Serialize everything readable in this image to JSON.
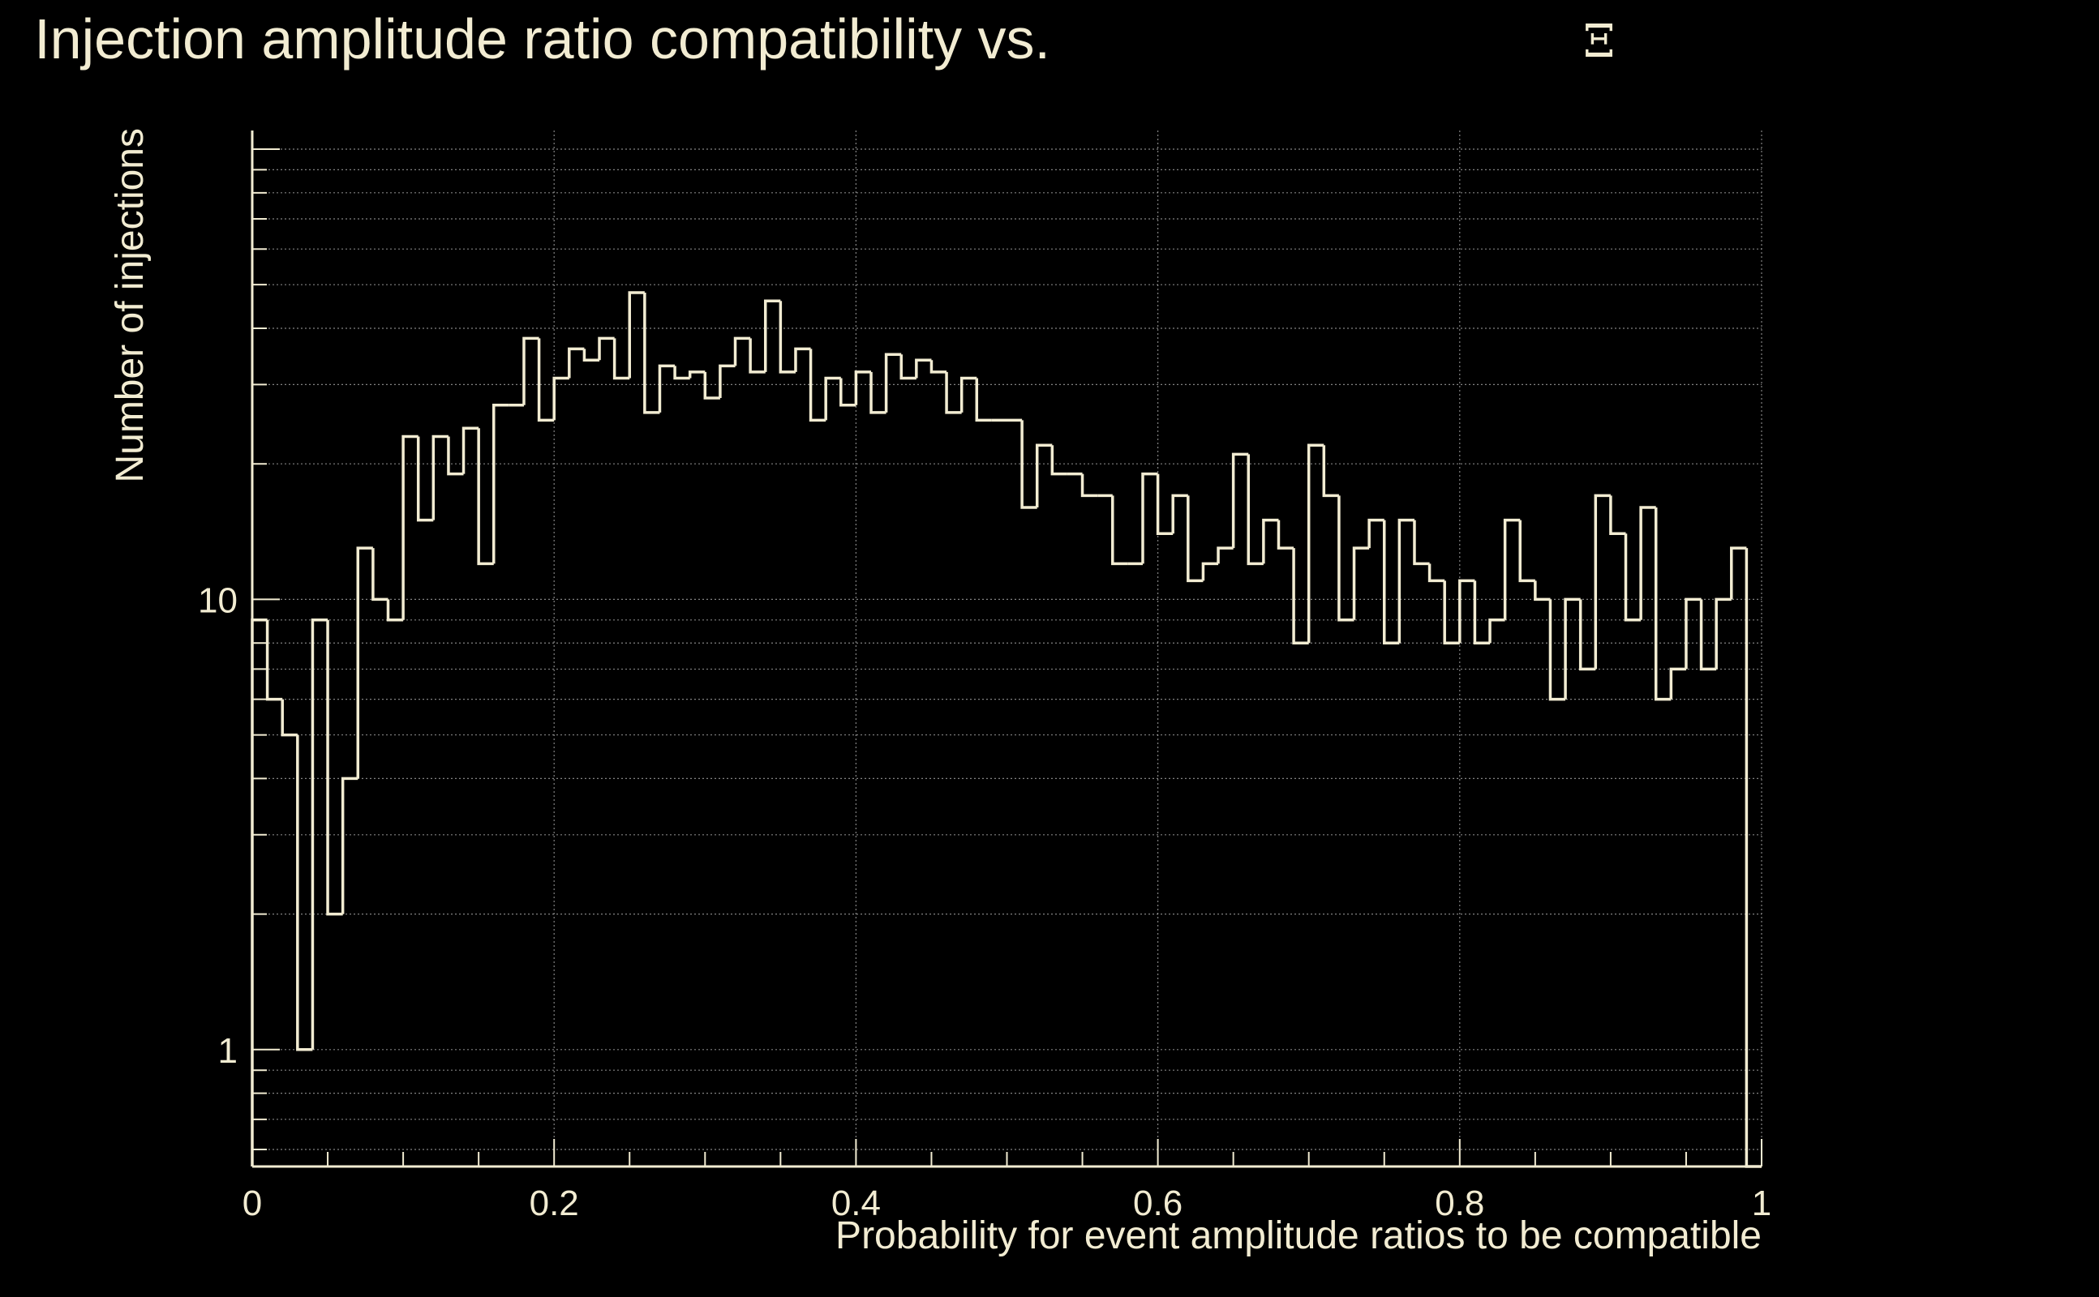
{
  "chart_data": {
    "type": "bar",
    "title": "Injection amplitude ratio compatibility vs.",
    "title_symbol": "Ξ",
    "xlabel": "Probability for event amplitude ratios to be compatible",
    "ylabel": "Number of injections",
    "xlim": [
      0,
      1
    ],
    "ylim": [
      0.55,
      110
    ],
    "y_scale": "log",
    "grid": true,
    "x_ticks": [
      0,
      0.2,
      0.4,
      0.6,
      0.8,
      1
    ],
    "x_tick_labels": [
      "0",
      "0.2",
      "0.4",
      "0.6",
      "0.8",
      "1"
    ],
    "y_ticks": [
      1,
      10
    ],
    "y_tick_labels": [
      "1",
      "10"
    ],
    "bin_width": 0.01,
    "values": [
      9,
      6,
      5,
      1,
      9,
      2,
      4,
      13,
      10,
      9,
      23,
      15,
      23,
      19,
      24,
      12,
      27,
      27,
      38,
      25,
      31,
      36,
      34,
      38,
      31,
      48,
      26,
      33,
      31,
      32,
      28,
      33,
      38,
      32,
      46,
      32,
      36,
      25,
      31,
      27,
      32,
      26,
      35,
      31,
      34,
      32,
      26,
      31,
      25,
      25,
      25,
      16,
      22,
      19,
      19,
      17,
      17,
      12,
      12,
      19,
      14,
      17,
      11,
      12,
      13,
      21,
      12,
      15,
      13,
      8,
      22,
      17,
      9,
      13,
      15,
      8,
      15,
      12,
      11,
      8,
      11,
      8,
      9,
      15,
      11,
      10,
      6,
      10,
      7,
      17,
      14,
      9,
      16,
      6,
      7,
      10,
      7,
      10,
      13,
      0.55
    ],
    "colors": {
      "background": "#000000",
      "foreground": "#f2ecd2",
      "grid": "#bbbbbb"
    }
  }
}
